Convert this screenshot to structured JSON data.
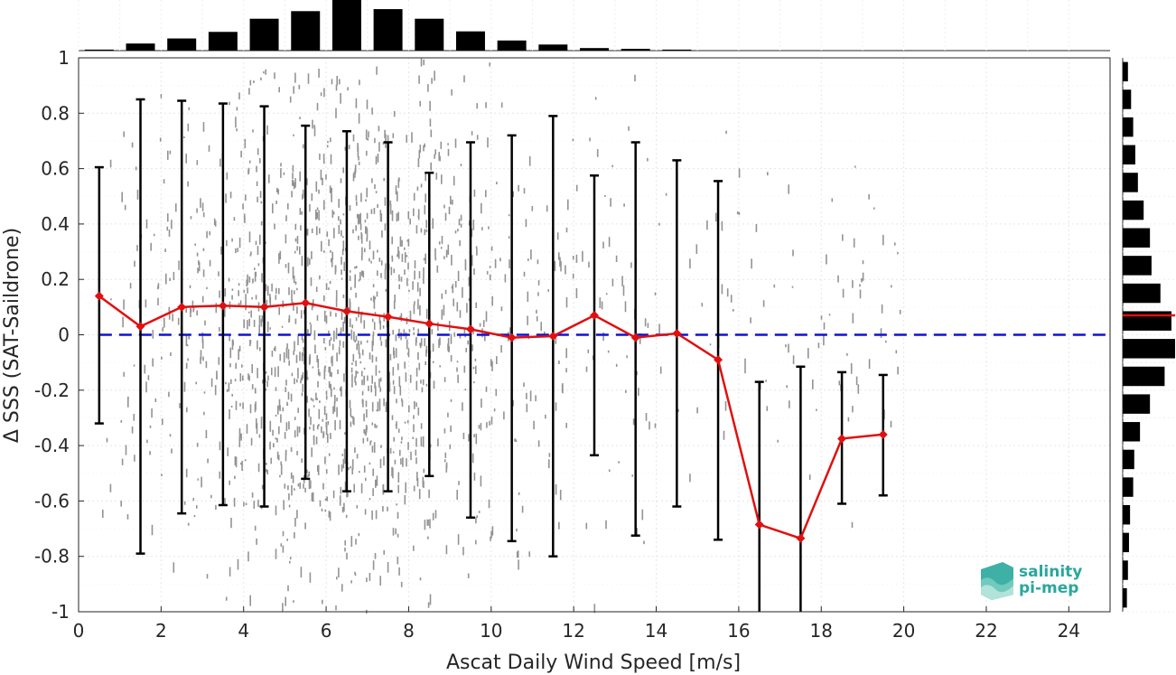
{
  "chart_data": {
    "type": "line",
    "xlabel": "Ascat Daily Wind Speed [m/s]",
    "ylabel": "Δ SSS (SAT-Saildrone)",
    "xlim": [
      0,
      25
    ],
    "ylim": [
      -1,
      1
    ],
    "xticks": [
      0,
      2,
      4,
      6,
      8,
      10,
      12,
      14,
      16,
      18,
      20,
      22,
      24
    ],
    "yticks": [
      -1,
      -0.8,
      -0.6,
      -0.4,
      -0.2,
      0,
      0.2,
      0.4,
      0.6,
      0.8,
      1
    ],
    "ytick_labels": [
      "-1",
      "-0.8",
      "-0.6",
      "-0.4",
      "-0.2",
      "0",
      "0.2",
      "0.4",
      "0.6",
      "0.8",
      "1"
    ],
    "grid": true,
    "reference_line": {
      "y": 0,
      "style": "dashed",
      "color": "#1010d8"
    },
    "series": [
      {
        "type": "line-with-errorbars",
        "color": "#e01010",
        "marker": "diamond",
        "x": [
          0.5,
          1.5,
          2.5,
          3.5,
          4.5,
          5.5,
          6.5,
          7.5,
          8.5,
          9.5,
          10.5,
          11.5,
          12.5,
          13.5,
          14.5,
          15.5,
          16.5,
          17.5,
          18.5,
          19.5
        ],
        "y": [
          0.14,
          0.03,
          0.1,
          0.105,
          0.1,
          0.115,
          0.085,
          0.065,
          0.04,
          0.02,
          -0.01,
          -0.005,
          0.07,
          -0.01,
          0.005,
          -0.09,
          -0.685,
          -0.735,
          -0.375,
          -0.36
        ],
        "err_low": [
          -0.32,
          -0.79,
          -0.645,
          -0.615,
          -0.62,
          -0.52,
          -0.565,
          -0.565,
          -0.51,
          -0.66,
          -0.745,
          -0.8,
          -0.435,
          -0.725,
          -0.62,
          -0.74,
          -1.0,
          -1.0,
          -0.61,
          -0.58
        ],
        "err_high": [
          0.605,
          0.85,
          0.845,
          0.835,
          0.825,
          0.755,
          0.735,
          0.695,
          0.585,
          0.695,
          0.72,
          0.79,
          0.575,
          0.695,
          0.63,
          0.555,
          -0.17,
          -0.115,
          -0.135,
          -0.145
        ]
      },
      {
        "type": "scatter-cloud",
        "color": "#808080",
        "x_range": [
          0.5,
          20
        ],
        "y_range": [
          -1,
          1
        ]
      }
    ],
    "top_histogram": {
      "x": [
        0.5,
        1.5,
        2.5,
        3.5,
        4.5,
        5.5,
        6.5,
        7.5,
        8.5,
        9.5,
        10.5,
        11.5,
        12.5,
        13.5,
        14.5
      ],
      "values": [
        0.02,
        0.14,
        0.24,
        0.37,
        0.63,
        0.78,
        1.0,
        0.82,
        0.63,
        0.38,
        0.2,
        0.12,
        0.05,
        0.035,
        0.02
      ]
    },
    "right_histogram": {
      "y": [
        0.95,
        0.85,
        0.75,
        0.65,
        0.55,
        0.45,
        0.35,
        0.25,
        0.15,
        0.05,
        -0.05,
        -0.15,
        -0.25,
        -0.35,
        -0.45,
        -0.55,
        -0.65,
        -0.75,
        -0.85,
        -0.95
      ],
      "values": [
        0.1,
        0.16,
        0.2,
        0.24,
        0.29,
        0.4,
        0.52,
        0.55,
        0.72,
        0.93,
        1.0,
        0.8,
        0.52,
        0.33,
        0.22,
        0.2,
        0.14,
        0.12,
        0.1,
        0.08
      ],
      "mean_line": 0.07
    }
  },
  "logo": {
    "line1": "salinity",
    "line2": "pi-mep",
    "accent": "#2aa79b"
  }
}
